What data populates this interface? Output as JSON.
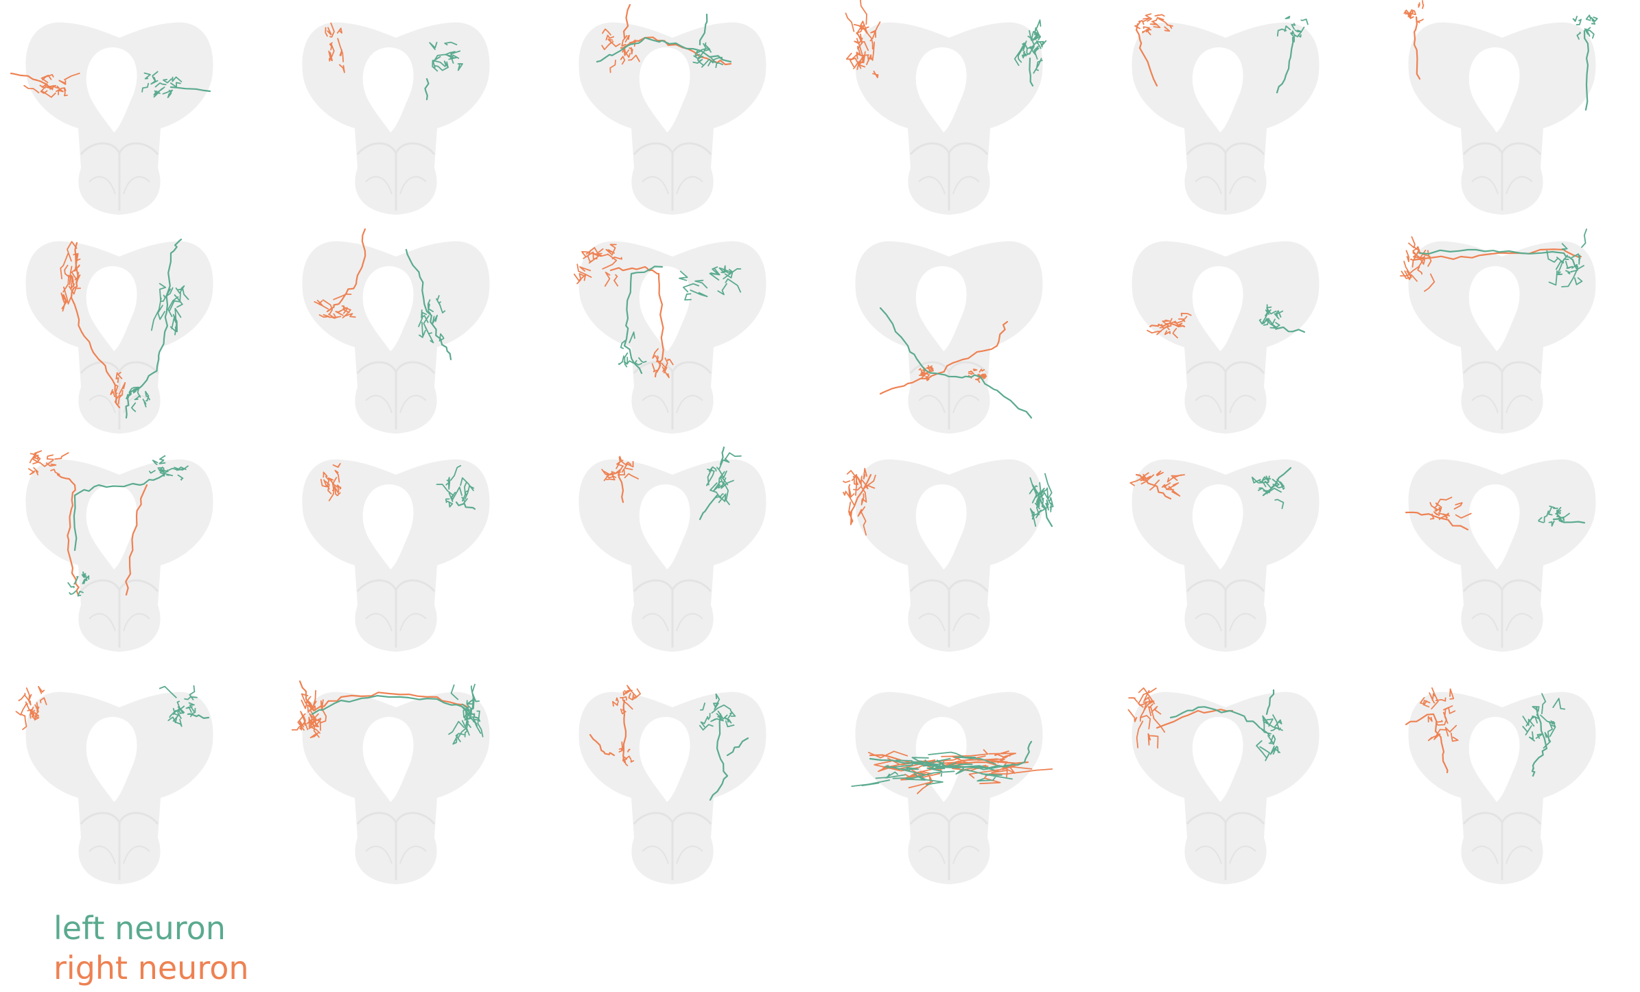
{
  "colors": {
    "left": "#5aaa8e",
    "right": "#ee8152",
    "brain_fill": "#efefef",
    "brain_shade": "#e3e3e3",
    "background": "#ffffff"
  },
  "legend": {
    "left_label": "left neuron",
    "right_label": "right neuron"
  },
  "grid": {
    "rows": 4,
    "columns": 6
  },
  "panels": [
    {
      "id": 1,
      "row": 1,
      "col": 1,
      "pattern": "lateral-tufts"
    },
    {
      "id": 2,
      "row": 1,
      "col": 2,
      "pattern": "ipsilateral-upper"
    },
    {
      "id": 3,
      "row": 1,
      "col": 3,
      "pattern": "commissural-arc"
    },
    {
      "id": 4,
      "row": 1,
      "col": 4,
      "pattern": "dense-lateral-clusters"
    },
    {
      "id": 5,
      "row": 1,
      "col": 5,
      "pattern": "dorsal-descending"
    },
    {
      "id": 6,
      "row": 1,
      "col": 6,
      "pattern": "dorsal-descending"
    },
    {
      "id": 7,
      "row": 2,
      "col": 1,
      "pattern": "long-descending"
    },
    {
      "id": 8,
      "row": 2,
      "col": 2,
      "pattern": "lateral-projection"
    },
    {
      "id": 9,
      "row": 2,
      "col": 3,
      "pattern": "loop-crossing"
    },
    {
      "id": 10,
      "row": 2,
      "col": 4,
      "pattern": "ventral-x-crossing"
    },
    {
      "id": 11,
      "row": 2,
      "col": 5,
      "pattern": "small-lateral-tufts"
    },
    {
      "id": 12,
      "row": 2,
      "col": 6,
      "pattern": "dorsal-commissure"
    },
    {
      "id": 13,
      "row": 3,
      "col": 1,
      "pattern": "ring-commissure"
    },
    {
      "id": 14,
      "row": 3,
      "col": 2,
      "pattern": "lateral-tufts"
    },
    {
      "id": 15,
      "row": 3,
      "col": 3,
      "pattern": "vertical-arbors"
    },
    {
      "id": 16,
      "row": 3,
      "col": 4,
      "pattern": "elongated-outer"
    },
    {
      "id": 17,
      "row": 3,
      "col": 5,
      "pattern": "lateral-tufts"
    },
    {
      "id": 18,
      "row": 3,
      "col": 6,
      "pattern": "lower-lateral"
    },
    {
      "id": 19,
      "row": 4,
      "col": 1,
      "pattern": "outer-tufts"
    },
    {
      "id": 20,
      "row": 4,
      "col": 2,
      "pattern": "wide-commissure"
    },
    {
      "id": 21,
      "row": 4,
      "col": 3,
      "pattern": "vertical-branching"
    },
    {
      "id": 22,
      "row": 4,
      "col": 4,
      "pattern": "ventral-band"
    },
    {
      "id": 23,
      "row": 4,
      "col": 5,
      "pattern": "short-commissure"
    },
    {
      "id": 24,
      "row": 4,
      "col": 6,
      "pattern": "branching-descending"
    }
  ]
}
